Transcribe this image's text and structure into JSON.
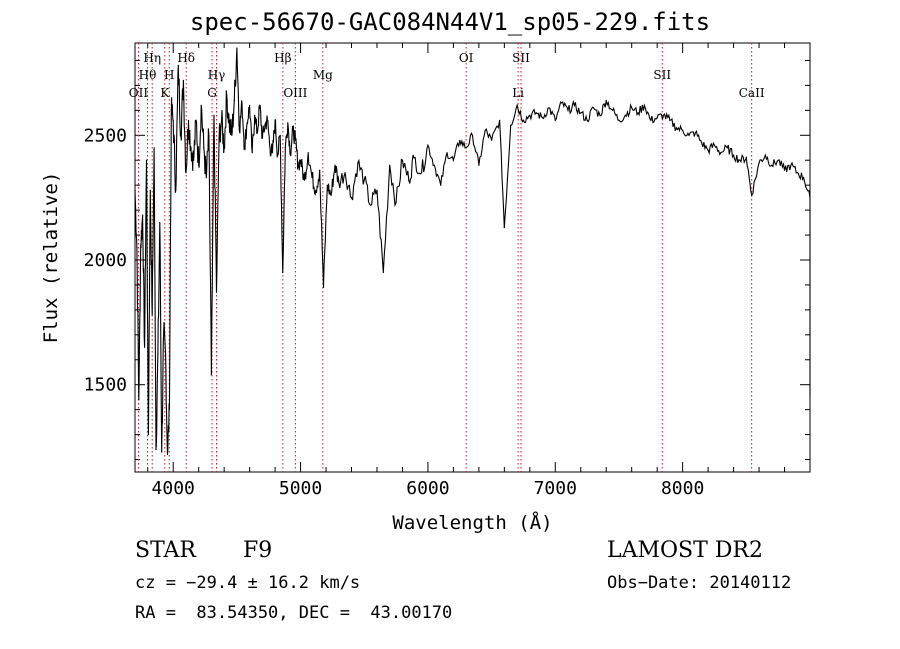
{
  "chart_data": {
    "type": "line",
    "title": "spec-56670-GAC084N44V1_sp05-229.fits",
    "xlabel": "Wavelength (Å)",
    "ylabel": "Flux (relative)",
    "xlim": [
      3700,
      9000
    ],
    "ylim": [
      1150,
      2870
    ],
    "xticks": [
      4000,
      5000,
      6000,
      7000,
      8000
    ],
    "yticks": [
      1500,
      2000,
      2500
    ],
    "grid": false,
    "series": [
      {
        "x": [
          3700,
          3715,
          3730,
          3745,
          3760,
          3775,
          3790,
          3805,
          3820,
          3835,
          3850,
          3865,
          3880,
          3895,
          3910,
          3925,
          3940,
          3955,
          3970,
          3985,
          4000,
          4020,
          4040,
          4060,
          4080,
          4100,
          4120,
          4140,
          4160,
          4180,
          4200,
          4220,
          4240,
          4260,
          4280,
          4300,
          4320,
          4340,
          4360,
          4380,
          4400,
          4420,
          4440,
          4460,
          4480,
          4500,
          4520,
          4540,
          4560,
          4580,
          4600,
          4620,
          4640,
          4660,
          4680,
          4700,
          4720,
          4740,
          4760,
          4780,
          4800,
          4820,
          4840,
          4860,
          4880,
          4900,
          4920,
          4940,
          4960,
          4980,
          5000,
          5030,
          5060,
          5090,
          5120,
          5150,
          5180,
          5210,
          5240,
          5270,
          5300,
          5350,
          5400,
          5450,
          5500,
          5550,
          5600,
          5650,
          5700,
          5750,
          5800,
          5850,
          5890,
          5950,
          6000,
          6050,
          6100,
          6150,
          6200,
          6250,
          6300,
          6350,
          6400,
          6450,
          6500,
          6563,
          6600,
          6650,
          6700,
          6750,
          6800,
          6850,
          6900,
          6950,
          7000,
          7050,
          7100,
          7150,
          7200,
          7250,
          7300,
          7350,
          7400,
          7450,
          7500,
          7550,
          7600,
          7650,
          7700,
          7750,
          7800,
          7850,
          7900,
          7950,
          8000,
          8050,
          8100,
          8150,
          8200,
          8250,
          8300,
          8350,
          8400,
          8450,
          8500,
          8542,
          8600,
          8650,
          8700,
          8750,
          8800,
          8850,
          8900,
          8950,
          9000
        ],
        "y": [
          2280,
          2050,
          1440,
          2060,
          2180,
          1650,
          2400,
          1300,
          2280,
          1780,
          2450,
          1240,
          1620,
          2150,
          1230,
          1710,
          1620,
          1220,
          1400,
          2600,
          2560,
          2280,
          2780,
          2500,
          2720,
          2350,
          2560,
          2450,
          2400,
          2560,
          2380,
          2620,
          2450,
          2330,
          2500,
          1540,
          2580,
          1870,
          2490,
          2560,
          2450,
          2660,
          2550,
          2500,
          2640,
          2850,
          2520,
          2630,
          2450,
          2550,
          2620,
          2430,
          2580,
          2510,
          2620,
          2490,
          2540,
          2560,
          2450,
          2430,
          2560,
          2420,
          2500,
          1950,
          2450,
          2550,
          2430,
          2520,
          2480,
          2380,
          2400,
          2320,
          2430,
          2330,
          2280,
          2360,
          1890,
          2300,
          2260,
          2380,
          2310,
          2350,
          2250,
          2390,
          2320,
          2220,
          2280,
          1950,
          2380,
          2230,
          2400,
          2320,
          2410,
          2350,
          2460,
          2380,
          2300,
          2430,
          2400,
          2480,
          2450,
          2500,
          2380,
          2520,
          2480,
          2560,
          2130,
          2540,
          2620,
          2560,
          2580,
          2590,
          2570,
          2610,
          2560,
          2630,
          2600,
          2620,
          2590,
          2560,
          2610,
          2580,
          2640,
          2600,
          2560,
          2580,
          2610,
          2590,
          2620,
          2560,
          2570,
          2580,
          2560,
          2530,
          2520,
          2500,
          2510,
          2470,
          2440,
          2460,
          2430,
          2450,
          2420,
          2400,
          2410,
          2260,
          2390,
          2420,
          2380,
          2400,
          2360,
          2380,
          2350,
          2330,
          2250
        ]
      }
    ],
    "lines": [
      {
        "label": "OII",
        "x": 3727,
        "row": 3
      },
      {
        "label": "Hθ",
        "x": 3798,
        "row": 2
      },
      {
        "label": "Hη",
        "x": 3835,
        "row": 1
      },
      {
        "label": "K",
        "x": 3934,
        "row": 3
      },
      {
        "label": "H",
        "x": 3969,
        "row": 2
      },
      {
        "label": "Hδ",
        "x": 4102,
        "row": 1
      },
      {
        "label": "G",
        "x": 4305,
        "row": 3
      },
      {
        "label": "Hγ",
        "x": 4340,
        "row": 2
      },
      {
        "label": "Hβ",
        "x": 4861,
        "row": 1
      },
      {
        "label": "OIII",
        "x": 4959,
        "row": 3
      },
      {
        "label": "Mg",
        "x": 5175,
        "row": 2
      },
      {
        "label": "OI",
        "x": 6300,
        "row": 1
      },
      {
        "label": "Li",
        "x": 6708,
        "row": 3
      },
      {
        "label": "SII",
        "x": 6731,
        "row": 1
      },
      {
        "label": "SII",
        "x": 7840,
        "row": 2
      },
      {
        "label": "CaII",
        "x": 8542,
        "row": 3
      }
    ]
  },
  "info": {
    "class_label": "STAR",
    "subclass": "F9",
    "survey": "LAMOST DR2",
    "cz": "cz = −29.4 ± 16.2 km/s",
    "obs_date": "Obs−Date: 20140112",
    "coords": "RA =  83.54350, DEC =  43.00170"
  }
}
